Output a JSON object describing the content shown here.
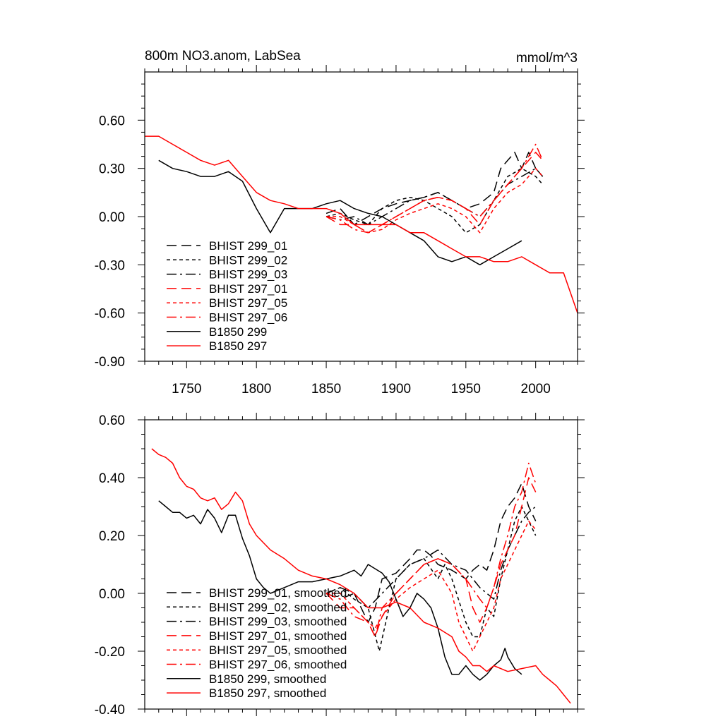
{
  "chart_data": [
    {
      "type": "line",
      "title": "800m NO3.anom, LabSea",
      "units": "mmol/m^3",
      "xlabel": "",
      "ylabel": "",
      "xlim": [
        1720,
        2030
      ],
      "ylim": [
        -0.9,
        0.9
      ],
      "x_ticks": [
        1750,
        1800,
        1850,
        1900,
        1950,
        2000
      ],
      "x_tick_labels": [
        "1750",
        "1800",
        "1850",
        "1900",
        "1950",
        "2000"
      ],
      "y_ticks": [
        -0.9,
        -0.6,
        -0.3,
        0.0,
        0.3,
        0.6
      ],
      "y_tick_labels": [
        "-0.90",
        "-0.60",
        "-0.30",
        "0.00",
        "0.30",
        "0.60"
      ],
      "legend_position": "lower-left",
      "series": [
        {
          "name": "BHIST 299_01",
          "color": "#000000",
          "dash": "long-dash",
          "x": [
            1850,
            1860,
            1870,
            1880,
            1890,
            1900,
            1910,
            1920,
            1930,
            1940,
            1950,
            1960,
            1970,
            1975,
            1980,
            1985,
            1990,
            1995,
            2000,
            2005
          ],
          "y": [
            0.02,
            0.05,
            -0.05,
            0.0,
            0.05,
            0.08,
            0.1,
            0.12,
            0.15,
            0.1,
            0.05,
            0.08,
            0.15,
            0.3,
            0.35,
            0.4,
            0.3,
            0.4,
            0.3,
            0.25
          ]
        },
        {
          "name": "BHIST 299_02",
          "color": "#000000",
          "dash": "short-dash",
          "x": [
            1850,
            1860,
            1870,
            1880,
            1890,
            1900,
            1910,
            1920,
            1930,
            1940,
            1950,
            1960,
            1970,
            1980,
            1990,
            2000,
            2005
          ],
          "y": [
            0.0,
            0.02,
            -0.02,
            -0.05,
            0.05,
            0.1,
            0.12,
            0.1,
            0.05,
            0.0,
            -0.1,
            -0.05,
            0.1,
            0.25,
            0.3,
            0.25,
            0.2
          ]
        },
        {
          "name": "BHIST 299_03",
          "color": "#000000",
          "dash": "dash-dot",
          "x": [
            1850,
            1860,
            1870,
            1880,
            1890,
            1900,
            1910,
            1920,
            1930,
            1940,
            1950,
            1960,
            1970,
            1980,
            1990,
            2000,
            2005
          ],
          "y": [
            0.0,
            -0.02,
            0.0,
            -0.05,
            0.0,
            0.05,
            0.1,
            0.12,
            0.15,
            0.1,
            0.05,
            0.0,
            0.1,
            0.2,
            0.25,
            0.3,
            0.25
          ]
        },
        {
          "name": "BHIST 297_01",
          "color": "#ff0000",
          "dash": "long-dash",
          "x": [
            1850,
            1860,
            1870,
            1880,
            1890,
            1900,
            1910,
            1920,
            1930,
            1940,
            1950,
            1960,
            1970,
            1980,
            1990,
            2000,
            2005
          ],
          "y": [
            0.0,
            -0.05,
            -0.05,
            -0.1,
            -0.05,
            0.0,
            0.05,
            0.1,
            0.12,
            0.1,
            0.05,
            -0.05,
            0.1,
            0.2,
            0.3,
            0.4,
            0.35
          ]
        },
        {
          "name": "BHIST 297_05",
          "color": "#ff0000",
          "dash": "short-dash",
          "x": [
            1850,
            1860,
            1870,
            1880,
            1890,
            1900,
            1910,
            1920,
            1930,
            1940,
            1950,
            1960,
            1970,
            1980,
            1990,
            2000,
            2005
          ],
          "y": [
            0.0,
            0.0,
            -0.05,
            -0.1,
            -0.08,
            -0.02,
            0.02,
            0.05,
            0.08,
            0.05,
            0.0,
            -0.1,
            0.05,
            0.15,
            0.2,
            0.3,
            0.25
          ]
        },
        {
          "name": "BHIST 297_06",
          "color": "#ff0000",
          "dash": "dash-dot",
          "x": [
            1850,
            1860,
            1870,
            1880,
            1890,
            1900,
            1910,
            1920,
            1930,
            1940,
            1950,
            1960,
            1970,
            1980,
            1990,
            2000,
            2005
          ],
          "y": [
            0.0,
            -0.02,
            -0.08,
            -0.1,
            -0.05,
            0.0,
            0.05,
            0.1,
            0.12,
            0.1,
            0.05,
            0.0,
            0.1,
            0.2,
            0.3,
            0.45,
            0.35
          ]
        },
        {
          "name": "B1850 299",
          "color": "#000000",
          "dash": "solid",
          "x": [
            1730,
            1740,
            1750,
            1760,
            1770,
            1780,
            1790,
            1800,
            1810,
            1820,
            1830,
            1840,
            1850,
            1860,
            1870,
            1880,
            1890,
            1900,
            1910,
            1920,
            1930,
            1940,
            1950,
            1960,
            1970,
            1980,
            1990
          ],
          "y": [
            0.35,
            0.3,
            0.28,
            0.25,
            0.25,
            0.28,
            0.22,
            0.05,
            -0.1,
            0.05,
            0.05,
            0.05,
            0.08,
            0.1,
            0.05,
            0.02,
            0.0,
            -0.05,
            -0.1,
            -0.15,
            -0.25,
            -0.28,
            -0.25,
            -0.3,
            -0.25,
            -0.2,
            -0.15
          ]
        },
        {
          "name": "B1850 297",
          "color": "#ff0000",
          "dash": "solid",
          "x": [
            1720,
            1730,
            1740,
            1750,
            1760,
            1770,
            1780,
            1790,
            1800,
            1810,
            1820,
            1830,
            1840,
            1850,
            1860,
            1870,
            1880,
            1890,
            1900,
            1910,
            1920,
            1930,
            1940,
            1950,
            1960,
            1970,
            1980,
            1990,
            2000,
            2010,
            2020,
            2030
          ],
          "y": [
            0.5,
            0.5,
            0.45,
            0.4,
            0.35,
            0.32,
            0.35,
            0.25,
            0.15,
            0.1,
            0.08,
            0.05,
            0.05,
            0.05,
            0.02,
            -0.05,
            -0.05,
            -0.05,
            -0.05,
            -0.1,
            -0.1,
            -0.15,
            -0.2,
            -0.25,
            -0.25,
            -0.28,
            -0.28,
            -0.25,
            -0.3,
            -0.35,
            -0.35,
            -0.6
          ]
        }
      ]
    },
    {
      "type": "line",
      "title": "",
      "xlabel": "",
      "ylabel": "",
      "xlim": [
        1720,
        2030
      ],
      "ylim": [
        -0.4,
        0.6
      ],
      "x_ticks": [
        1750,
        1800,
        1850,
        1900,
        1950,
        2000
      ],
      "y_ticks": [
        -0.4,
        -0.2,
        0.0,
        0.2,
        0.4,
        0.6
      ],
      "y_tick_labels": [
        "-0.40",
        "-0.20",
        "0.00",
        "0.20",
        "0.40",
        "0.60"
      ],
      "legend_position": "lower-left",
      "series": [
        {
          "name": "BHIST 299_01, smoothed",
          "color": "#000000",
          "dash": "long-dash",
          "x": [
            1850,
            1860,
            1870,
            1880,
            1885,
            1890,
            1900,
            1910,
            1915,
            1920,
            1925,
            1930,
            1940,
            1950,
            1955,
            1960,
            1965,
            1970,
            1975,
            1980,
            1985,
            1990,
            1995,
            2000
          ],
          "y": [
            0.0,
            0.02,
            0.0,
            -0.1,
            -0.05,
            0.05,
            0.07,
            0.12,
            0.15,
            0.15,
            0.13,
            0.1,
            0.08,
            0.05,
            0.08,
            0.1,
            0.08,
            0.15,
            0.25,
            0.3,
            0.33,
            0.38,
            0.3,
            0.25
          ]
        },
        {
          "name": "BHIST 299_02, smoothed",
          "color": "#000000",
          "dash": "short-dash",
          "x": [
            1850,
            1860,
            1870,
            1880,
            1888,
            1895,
            1900,
            1910,
            1920,
            1930,
            1935,
            1940,
            1950,
            1955,
            1960,
            1965,
            1970,
            1975,
            1980,
            1985,
            1990,
            1995,
            2000
          ],
          "y": [
            0.0,
            0.02,
            -0.02,
            -0.05,
            -0.2,
            -0.05,
            0.05,
            0.1,
            0.12,
            0.05,
            0.1,
            0.05,
            -0.1,
            -0.15,
            -0.15,
            -0.05,
            -0.08,
            0.05,
            0.15,
            0.25,
            0.3,
            0.25,
            0.2
          ]
        },
        {
          "name": "BHIST 299_03, smoothed",
          "color": "#000000",
          "dash": "dash-dot",
          "x": [
            1850,
            1860,
            1870,
            1880,
            1890,
            1900,
            1910,
            1920,
            1930,
            1940,
            1950,
            1960,
            1970,
            1975,
            1980,
            1985,
            1990,
            1995,
            2000
          ],
          "y": [
            0.0,
            -0.02,
            0.0,
            -0.05,
            0.0,
            0.05,
            0.1,
            0.12,
            0.15,
            0.1,
            0.08,
            0.02,
            -0.02,
            0.08,
            0.15,
            0.2,
            0.25,
            0.28,
            0.3
          ]
        },
        {
          "name": "BHIST 297_01, smoothed",
          "color": "#ff0000",
          "dash": "long-dash",
          "x": [
            1850,
            1860,
            1870,
            1880,
            1885,
            1890,
            1900,
            1910,
            1920,
            1930,
            1940,
            1950,
            1955,
            1960,
            1965,
            1970,
            1975,
            1980,
            1985,
            1990,
            1995,
            2000
          ],
          "y": [
            0.0,
            -0.05,
            -0.05,
            -0.1,
            -0.15,
            -0.08,
            0.0,
            0.05,
            0.1,
            0.12,
            0.1,
            0.05,
            -0.05,
            -0.1,
            -0.05,
            0.02,
            0.1,
            0.15,
            0.2,
            0.3,
            0.4,
            0.35
          ]
        },
        {
          "name": "BHIST 297_05, smoothed",
          "color": "#ff0000",
          "dash": "short-dash",
          "x": [
            1850,
            1860,
            1870,
            1880,
            1885,
            1890,
            1900,
            1910,
            1920,
            1930,
            1940,
            1945,
            1950,
            1955,
            1960,
            1965,
            1970,
            1975,
            1980,
            1985,
            1990,
            1995,
            2000
          ],
          "y": [
            0.0,
            0.0,
            -0.05,
            -0.1,
            -0.12,
            -0.08,
            -0.02,
            0.02,
            0.05,
            0.08,
            0.0,
            -0.1,
            -0.15,
            -0.2,
            -0.15,
            -0.1,
            -0.05,
            0.05,
            0.1,
            0.15,
            0.2,
            0.25,
            0.22
          ]
        },
        {
          "name": "BHIST 297_06, smoothed",
          "color": "#ff0000",
          "dash": "dash-dot",
          "x": [
            1850,
            1860,
            1870,
            1880,
            1885,
            1890,
            1900,
            1910,
            1920,
            1930,
            1940,
            1950,
            1960,
            1965,
            1970,
            1975,
            1980,
            1985,
            1990,
            1995,
            2000
          ],
          "y": [
            0.0,
            -0.02,
            -0.08,
            -0.1,
            -0.15,
            -0.05,
            0.0,
            0.05,
            0.1,
            0.12,
            0.1,
            0.05,
            -0.02,
            -0.05,
            0.02,
            0.12,
            0.2,
            0.3,
            0.35,
            0.45,
            0.38
          ]
        },
        {
          "name": "B1850 299, smoothed",
          "color": "#000000",
          "dash": "solid",
          "x": [
            1730,
            1735,
            1740,
            1745,
            1750,
            1755,
            1760,
            1765,
            1770,
            1775,
            1780,
            1785,
            1790,
            1795,
            1800,
            1805,
            1810,
            1820,
            1830,
            1840,
            1850,
            1860,
            1870,
            1875,
            1880,
            1890,
            1895,
            1900,
            1905,
            1910,
            1915,
            1920,
            1925,
            1930,
            1935,
            1940,
            1945,
            1950,
            1955,
            1960,
            1965,
            1970,
            1975,
            1978,
            1980,
            1985,
            1990
          ],
          "y": [
            0.32,
            0.3,
            0.28,
            0.28,
            0.26,
            0.27,
            0.24,
            0.29,
            0.26,
            0.21,
            0.27,
            0.27,
            0.19,
            0.13,
            0.05,
            0.02,
            0.0,
            0.02,
            0.04,
            0.04,
            0.05,
            0.06,
            0.08,
            0.06,
            0.1,
            0.07,
            0.04,
            -0.02,
            -0.08,
            -0.05,
            0.0,
            -0.02,
            -0.05,
            -0.12,
            -0.22,
            -0.28,
            -0.28,
            -0.25,
            -0.28,
            -0.3,
            -0.28,
            -0.25,
            -0.23,
            -0.19,
            -0.22,
            -0.26,
            -0.28
          ]
        },
        {
          "name": "B1850 297, smoothed",
          "color": "#ff0000",
          "dash": "solid",
          "x": [
            1725,
            1730,
            1735,
            1740,
            1745,
            1750,
            1755,
            1760,
            1765,
            1770,
            1775,
            1780,
            1785,
            1790,
            1795,
            1800,
            1810,
            1820,
            1830,
            1840,
            1850,
            1860,
            1870,
            1880,
            1890,
            1900,
            1910,
            1920,
            1930,
            1940,
            1945,
            1950,
            1955,
            1960,
            1965,
            1970,
            1980,
            1990,
            2000,
            2005,
            2010,
            2015,
            2020,
            2025
          ],
          "y": [
            0.5,
            0.48,
            0.47,
            0.45,
            0.4,
            0.37,
            0.36,
            0.33,
            0.32,
            0.33,
            0.29,
            0.31,
            0.35,
            0.32,
            0.24,
            0.2,
            0.15,
            0.12,
            0.08,
            0.06,
            0.05,
            0.03,
            0.0,
            -0.05,
            -0.05,
            -0.03,
            -0.05,
            -0.1,
            -0.12,
            -0.15,
            -0.2,
            -0.22,
            -0.25,
            -0.25,
            -0.27,
            -0.25,
            -0.27,
            -0.26,
            -0.25,
            -0.28,
            -0.3,
            -0.32,
            -0.35,
            -0.38
          ]
        }
      ]
    }
  ]
}
